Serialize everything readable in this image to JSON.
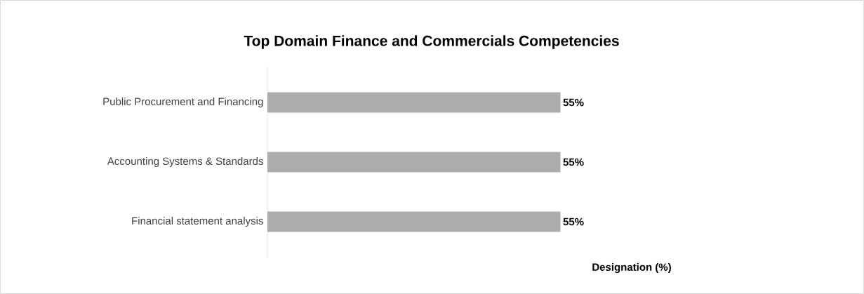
{
  "chart_data": {
    "type": "bar",
    "orientation": "horizontal",
    "title": "Top Domain Finance and Commercials Competencies",
    "xlabel": "Designation (%)",
    "categories": [
      "Public Procurement and Financing",
      "Accounting Systems & Standards",
      "Financial statement analysis"
    ],
    "values": [
      55,
      55,
      55
    ],
    "value_labels": [
      "55%",
      "55%",
      "55%"
    ],
    "color": "#aeabab"
  }
}
